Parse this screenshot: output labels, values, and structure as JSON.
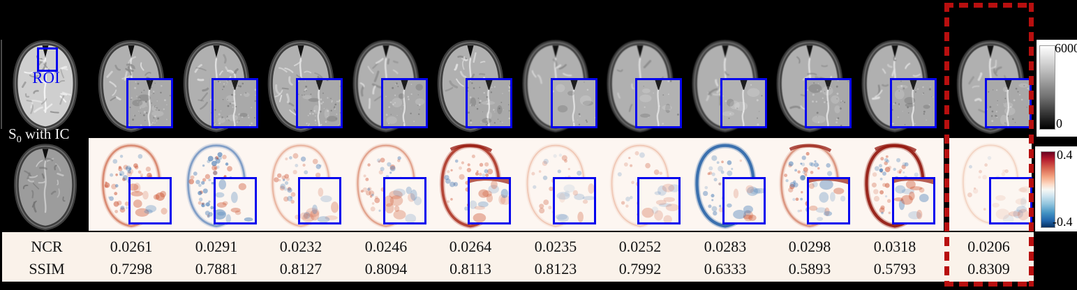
{
  "reference": {
    "roi_label": "ROI",
    "caption_base": "S",
    "caption_sub": "0",
    "caption_rest": " with IC"
  },
  "colorbars": {
    "intensity": {
      "max": "6000",
      "min": "0"
    },
    "error": {
      "max": "0.4",
      "min": "-0.4"
    }
  },
  "metrics": {
    "row_labels": [
      "NCR",
      "SSIM"
    ]
  },
  "columns": [
    {
      "ncr": "0.0261",
      "ssim": "0.7298",
      "look": "noisy",
      "error_style": "mixed-strong",
      "highlighted": false
    },
    {
      "ncr": "0.0291",
      "ssim": "0.7881",
      "look": "noisy",
      "error_style": "mixed-strong-blue",
      "highlighted": false
    },
    {
      "ncr": "0.0232",
      "ssim": "0.8127",
      "look": "noisy",
      "error_style": "mixed-mild",
      "highlighted": false
    },
    {
      "ncr": "0.0246",
      "ssim": "0.8094",
      "look": "medium",
      "error_style": "red-mild",
      "highlighted": false
    },
    {
      "ncr": "0.0264",
      "ssim": "0.8113",
      "look": "noisy",
      "error_style": "red-edge-strong",
      "highlighted": false
    },
    {
      "ncr": "0.0235",
      "ssim": "0.8123",
      "look": "smooth",
      "error_style": "faint-red",
      "highlighted": false
    },
    {
      "ncr": "0.0252",
      "ssim": "0.7992",
      "look": "smooth",
      "error_style": "faint-red",
      "highlighted": false
    },
    {
      "ncr": "0.0283",
      "ssim": "0.6333",
      "look": "smooth",
      "error_style": "blue-ring",
      "highlighted": false
    },
    {
      "ncr": "0.0298",
      "ssim": "0.5893",
      "look": "medium",
      "error_style": "mixed-blobs",
      "highlighted": false
    },
    {
      "ncr": "0.0318",
      "ssim": "0.5793",
      "look": "medium",
      "error_style": "red-ring",
      "highlighted": false
    },
    {
      "ncr": "0.0206",
      "ssim": "0.8309",
      "look": "medium",
      "error_style": "very-faint",
      "highlighted": true
    }
  ],
  "accent_blue": "#0404ee",
  "highlight_red": "#b80f0f"
}
